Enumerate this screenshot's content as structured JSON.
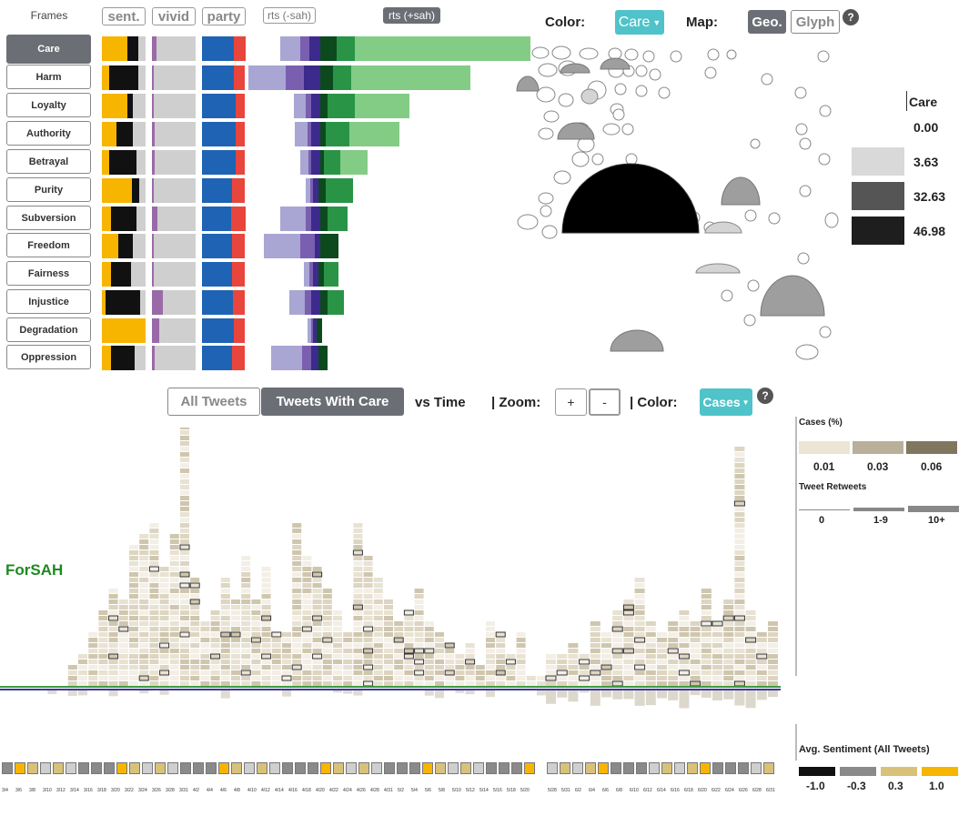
{
  "frames": {
    "title": "Frames",
    "items": [
      "Care",
      "Harm",
      "Loyalty",
      "Authority",
      "Betrayal",
      "Purity",
      "Subversion",
      "Freedom",
      "Fairness",
      "Injustice",
      "Degradation",
      "Oppression"
    ],
    "active": "Care"
  },
  "columns": {
    "sent": "sent.",
    "vivid": "vivid",
    "party": "party",
    "rts_sah_minus": "rts (-sah)",
    "rts_sah_plus": "rts (+sah)"
  },
  "top_controls": {
    "color_label": "Color:",
    "color_value": "Care",
    "map_label": "Map:",
    "geo": "Geo.",
    "glyph": "Glyph",
    "help": "?"
  },
  "map_legend": {
    "title": "Care",
    "values": [
      "0.00",
      "3.63",
      "32.63",
      "46.98"
    ],
    "colors": [
      "#ffffff",
      "#d9d9d9",
      "#555555",
      "#1e1e1e"
    ]
  },
  "bottom_controls": {
    "all_tweets": "All Tweets",
    "tweets_with": "Tweets With Care",
    "vs_time": "vs Time",
    "zoom_label": "| Zoom:",
    "zoom_in": "+",
    "zoom_out": "-",
    "color_label": "| Color:",
    "color_value": "Cases",
    "help": "?"
  },
  "series_label": "ForSAH",
  "cases_legend": {
    "title": "Cases (%)",
    "values": [
      "0.01",
      "0.03",
      "0.06"
    ],
    "colors": [
      "#ece5d6",
      "#b9b09a",
      "#817760"
    ]
  },
  "retweets_legend": {
    "title": "Tweet Retweets",
    "values": [
      "0",
      "1-9",
      "10+"
    ]
  },
  "sentiment_legend": {
    "title": "Avg. Sentiment (All Tweets)",
    "values": [
      "-1.0",
      "-0.3",
      "0.3",
      "1.0"
    ],
    "colors": [
      "#111111",
      "#8a8a8a",
      "#d8c27a",
      "#f7b500"
    ]
  },
  "time_ticks_a": [
    "3/4",
    "3/6",
    "3/8",
    "3/10",
    "3/12",
    "3/14",
    "3/16",
    "3/18",
    "3/20",
    "3/22",
    "3/24",
    "3/26",
    "3/28",
    "3/31",
    "4/2",
    "4/4",
    "4/6",
    "4/8",
    "4/10",
    "4/12",
    "4/14",
    "4/16",
    "4/18",
    "4/20",
    "4/22",
    "4/24",
    "4/26",
    "4/28",
    "4/31",
    "5/2",
    "5/4",
    "5/6",
    "5/8",
    "5/10",
    "5/12",
    "5/14",
    "5/16",
    "5/18",
    "5/20"
  ],
  "time_ticks_b": [
    "5/28",
    "5/31",
    "6/2",
    "6/4",
    "6/6",
    "6/8",
    "6/10",
    "6/12",
    "6/14",
    "6/16",
    "6/18",
    "6/20",
    "6/22",
    "6/24",
    "6/26",
    "6/28",
    "6/31"
  ],
  "colors": {
    "yellow": "#f7b500",
    "black": "#111111",
    "grey": "#cfcfcf",
    "purple": "#9a6aa8",
    "blue": "#1f63b5",
    "red": "#e8453c",
    "lav": "#a9a6d4",
    "lavdark": "#7a5fb0",
    "indigo": "#3c2a8c",
    "darkgreen": "#0c4a1e",
    "green": "#2a9446",
    "lightgreen": "#82cc85",
    "teal": "#4fc3c9",
    "series_green": "#1e8a1e"
  }
}
